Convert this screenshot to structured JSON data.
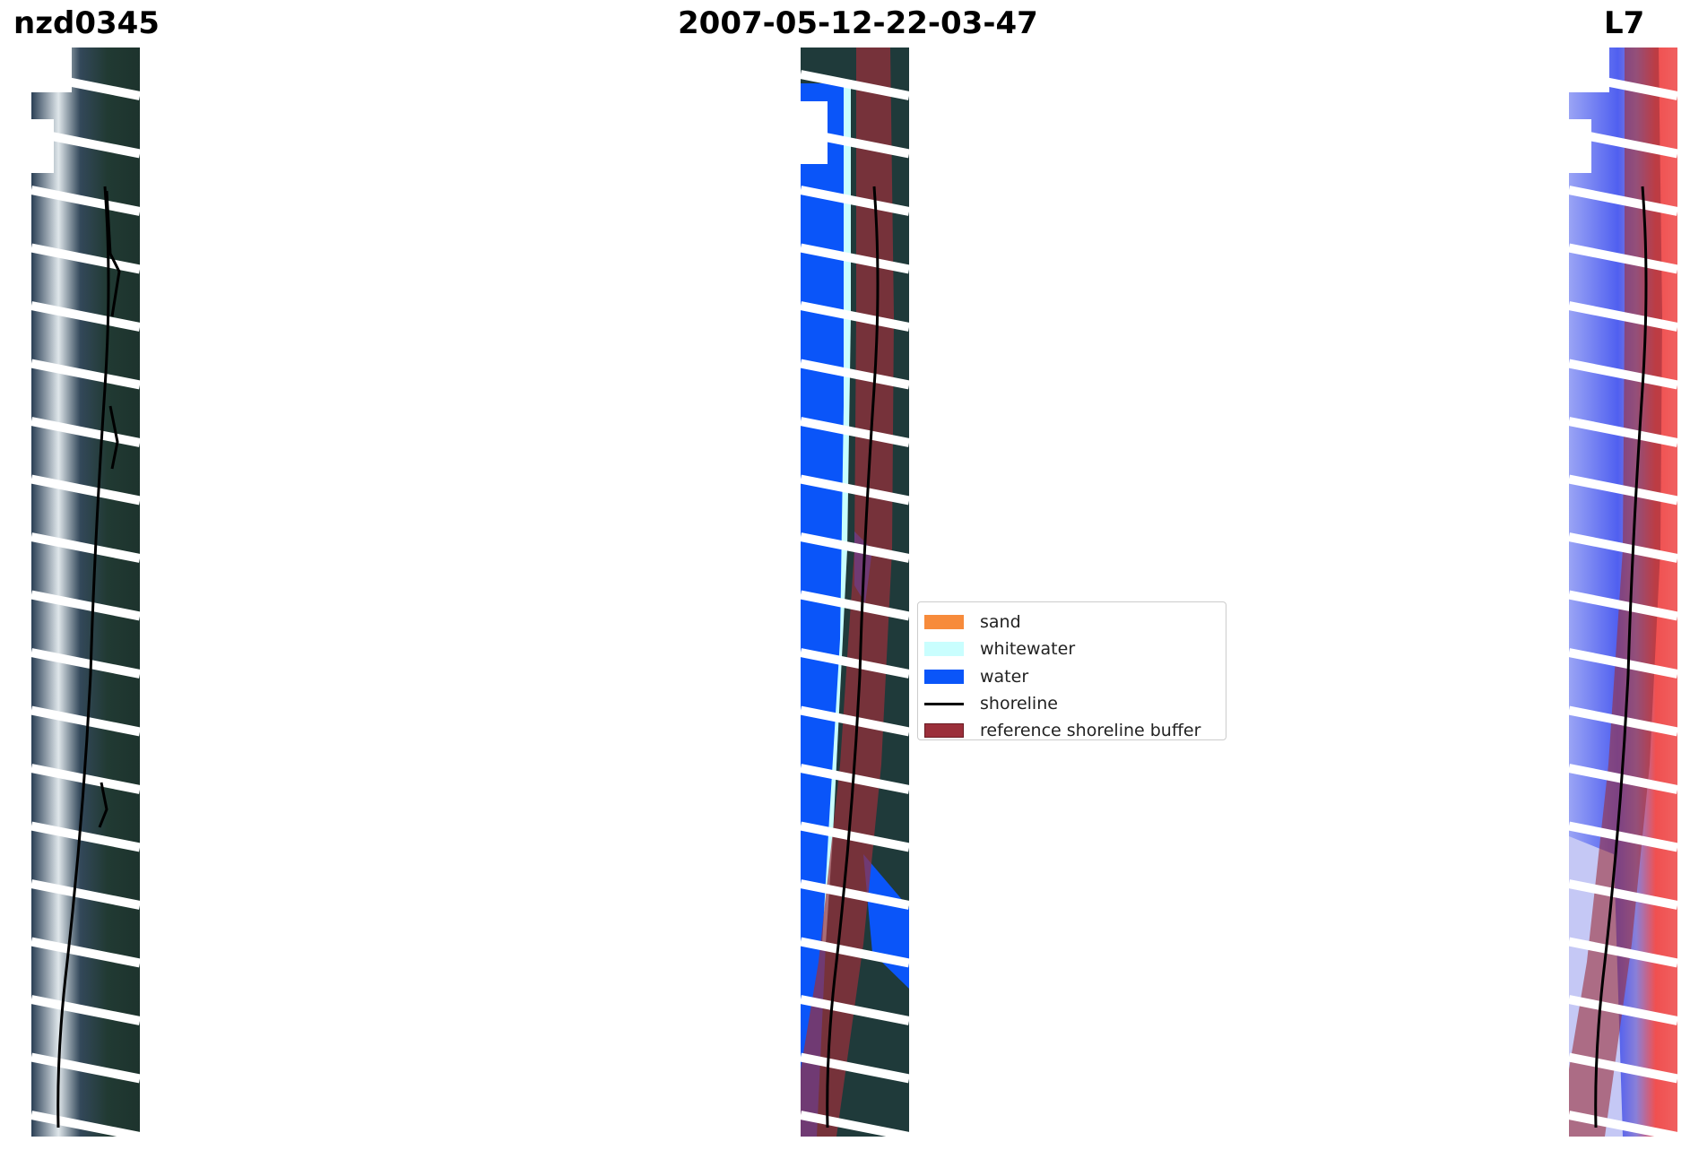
{
  "titles": {
    "left": "nzd0345",
    "center": "2007-05-12-22-03-47",
    "right": "L7"
  },
  "panels": {
    "left": "rgb-image",
    "center": "classified-image",
    "right": "water-index-image"
  },
  "colors": {
    "sand": "#f78b3b",
    "whitewater": "#c9fefe",
    "water": "#0a55f9",
    "shoreline": "#000000",
    "reference_buffer": "#9b2f3a",
    "land_dark": "#1f3a3a",
    "sea_dark": "#1c2e45",
    "index_water": "#5060f0",
    "index_land": "#f05050"
  },
  "legend": {
    "items": [
      {
        "label": "sand",
        "color": "#f78b3b",
        "type": "patch"
      },
      {
        "label": "whitewater",
        "color": "#c9fefe",
        "type": "patch"
      },
      {
        "label": "water",
        "color": "#0a55f9",
        "type": "patch"
      },
      {
        "label": "shoreline",
        "color": "#000000",
        "type": "line"
      },
      {
        "label": "reference shoreline buffer",
        "color": "#9b2f3a",
        "type": "patch"
      }
    ]
  }
}
